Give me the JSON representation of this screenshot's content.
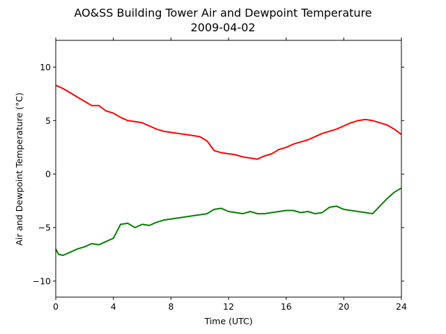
{
  "chart_data": {
    "type": "line",
    "title": "AO&SS Building Tower Air and Dewpoint Temperature",
    "subtitle": "2009-04-02",
    "xlabel": "Time (UTC)",
    "ylabel": "Air and Dewpoint Temperature (°C)",
    "xlim": [
      0,
      24
    ],
    "ylim": [
      -11.5,
      12.5
    ],
    "xticks": [
      0,
      4,
      8,
      12,
      16,
      20,
      24
    ],
    "yticks": [
      -10,
      -5,
      0,
      5,
      10
    ],
    "ytick_labels": [
      "−10",
      "−5",
      "0",
      "5",
      "10"
    ],
    "grid": false,
    "legend": "none",
    "series": [
      {
        "color": "#ff0000",
        "x": [
          0,
          0.5,
          1,
          1.5,
          2,
          2.5,
          3,
          3.5,
          4,
          4.5,
          5,
          5.5,
          6,
          6.5,
          7,
          7.5,
          8,
          8.5,
          9,
          9.5,
          10,
          10.5,
          11,
          11.5,
          12,
          12.5,
          13,
          13.5,
          14,
          14.5,
          15,
          15.5,
          16,
          16.5,
          17,
          17.5,
          18,
          18.5,
          19,
          19.5,
          20,
          20.5,
          21,
          21.5,
          22,
          22.5,
          23,
          23.5,
          24
        ],
        "y": [
          8.3,
          8.0,
          7.6,
          7.2,
          6.8,
          6.4,
          6.4,
          5.9,
          5.7,
          5.3,
          5.0,
          4.9,
          4.8,
          4.5,
          4.2,
          4.0,
          3.9,
          3.8,
          3.7,
          3.6,
          3.5,
          3.1,
          2.2,
          2.0,
          1.9,
          1.8,
          1.6,
          1.5,
          1.4,
          1.7,
          1.9,
          2.3,
          2.5,
          2.8,
          3.0,
          3.2,
          3.5,
          3.8,
          4.0,
          4.2,
          4.5,
          4.8,
          5.0,
          5.1,
          5.0,
          4.8,
          4.6,
          4.2,
          3.7
        ]
      },
      {
        "color": "#008000",
        "x": [
          0,
          0.2,
          0.5,
          1,
          1.5,
          2,
          2.5,
          3,
          3.5,
          4,
          4.5,
          5,
          5.5,
          6,
          6.5,
          7,
          7.5,
          8,
          8.5,
          9,
          9.5,
          10,
          10.5,
          11,
          11.5,
          12,
          12.5,
          13,
          13.5,
          14,
          14.5,
          15,
          15.5,
          16,
          16.5,
          17,
          17.5,
          18,
          18.5,
          19,
          19.5,
          20,
          20.5,
          21,
          21.5,
          22,
          22.5,
          23,
          23.5,
          24
        ],
        "y": [
          -7.0,
          -7.5,
          -7.6,
          -7.3,
          -7.0,
          -6.8,
          -6.5,
          -6.6,
          -6.3,
          -6.0,
          -4.7,
          -4.6,
          -5.0,
          -4.7,
          -4.8,
          -4.5,
          -4.3,
          -4.2,
          -4.1,
          -4.0,
          -3.9,
          -3.8,
          -3.7,
          -3.3,
          -3.2,
          -3.5,
          -3.6,
          -3.7,
          -3.5,
          -3.7,
          -3.7,
          -3.6,
          -3.5,
          -3.4,
          -3.4,
          -3.6,
          -3.5,
          -3.7,
          -3.6,
          -3.1,
          -3.0,
          -3.3,
          -3.4,
          -3.5,
          -3.6,
          -3.7,
          -3.0,
          -2.3,
          -1.7,
          -1.3
        ]
      }
    ]
  }
}
